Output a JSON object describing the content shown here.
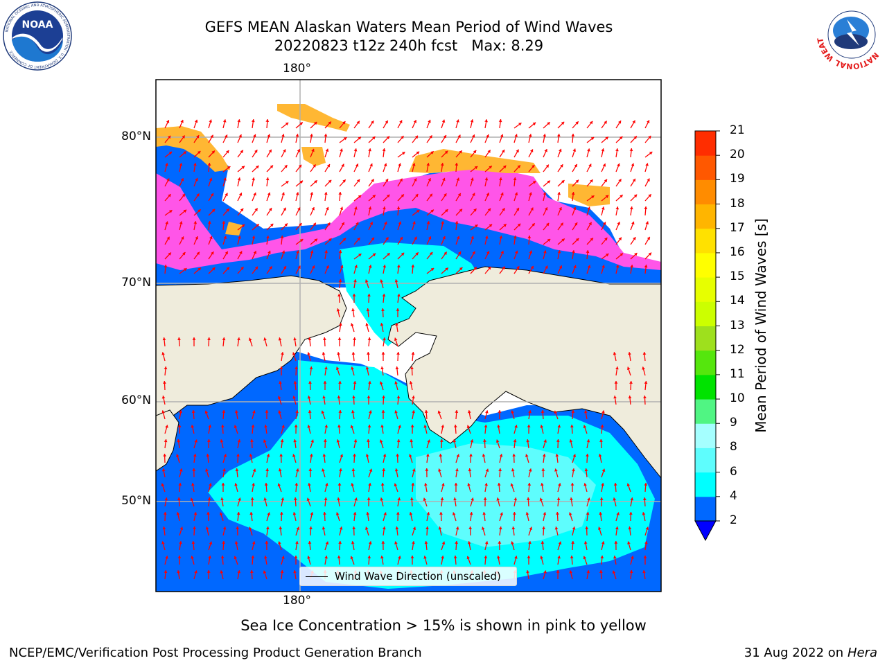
{
  "header": {
    "title_line1": "GEFS MEAN Alaskan Waters Mean Period of Wind Waves",
    "title_line2": "20220823 t12z 240h fcst   Max: 8.29"
  },
  "logos": {
    "left": {
      "icon": "noaa-logo-icon",
      "text": "NOAA",
      "ring_text": "NATIONAL OCEANIC AND ATMOSPHERIC ADMINISTRATION · U.S. DEPARTMENT OF COMMERCE"
    },
    "right": {
      "icon": "nws-logo-icon",
      "ring_text": "NATIONAL WEATHER SERVICE"
    }
  },
  "map": {
    "lon_label_top": "180°",
    "lon_label_bottom": "180°",
    "lat_labels": [
      "80°N",
      "70°N",
      "60°N",
      "50°N"
    ],
    "legend_text": "Wind Wave Direction (unscaled)",
    "colors": {
      "land": "#efecdc",
      "open_water_low": "#0068ff",
      "water_4_6": "#00ffff",
      "water_6_8": "#5efdfd",
      "below_2": "#0000ff",
      "ice_pink": "#ff55e8",
      "ice_orange": "#ffb733",
      "arrow": "#ff0000",
      "grid": "#b0b0b0"
    }
  },
  "colorbar": {
    "label": "Mean Period of Wind Waves [s]",
    "ticks": [
      "2",
      "4",
      "6",
      "8",
      "9",
      "10",
      "11",
      "12",
      "13",
      "14",
      "15",
      "16",
      "17",
      "18",
      "19",
      "20",
      "21"
    ],
    "colors": [
      "#0068ff",
      "#00ffff",
      "#5efdfd",
      "#a5ffff",
      "#50f583",
      "#00e300",
      "#55e60d",
      "#9ee01d",
      "#ccff00",
      "#e7ff00",
      "#ffff00",
      "#ffe100",
      "#ffb500",
      "#ff8c00",
      "#ff5800",
      "#ff2d00",
      "#ff0000"
    ],
    "under_color": "#0000ff"
  },
  "note": "Sea Ice Concentration > 15% is shown in pink to yellow",
  "footer": {
    "left": "NCEP/EMC/Verification Post Processing Product Generation Branch",
    "right_date": "31 Aug 2022 on",
    "right_host": "Hera"
  }
}
